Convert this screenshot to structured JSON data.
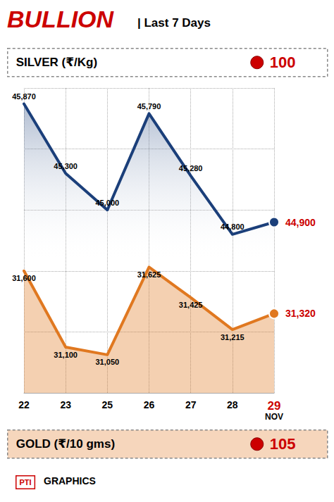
{
  "chart_data": {
    "type": "line",
    "title": "BULLION",
    "subtitle": "| Last 7 Days",
    "categories": [
      "22",
      "23",
      "25",
      "26",
      "27",
      "28",
      "29"
    ],
    "series": [
      {
        "name": "SILVER (₹/Kg)",
        "color": "#1b3f7a",
        "values": [
          45870,
          45300,
          45000,
          45790,
          45280,
          44800,
          44900
        ],
        "value_labels": [
          "45,870",
          "45,300",
          "45,000",
          "45,790",
          "45,280",
          "44,800",
          "44,900"
        ]
      },
      {
        "name": "GOLD (₹/10 gms)",
        "color": "#e07820",
        "axis": "y2",
        "values": [
          31600,
          31100,
          31050,
          31625,
          31425,
          31215,
          31320
        ],
        "value_labels": [
          "31,600",
          "31,100",
          "31,050",
          "31,625",
          "31,425",
          "31,215",
          "31,320"
        ]
      }
    ],
    "ylim": [
      43500,
      46000
    ],
    "yticks": [
      43500,
      44000,
      44500,
      45000,
      45500,
      46000
    ],
    "y2lim": [
      30800,
      32800
    ],
    "y2ticks": [
      30800,
      31200,
      31600,
      32000,
      32400,
      32800
    ],
    "grid": true,
    "data_labels": true,
    "tick_labels": "x",
    "annotations": [
      {
        "text": "100",
        "series": "SILVER (₹/Kg)"
      },
      {
        "text": "105",
        "series": "GOLD (₹/10 gms)"
      },
      {
        "text": "NOV",
        "category": "29"
      },
      {
        "text": "PTI"
      },
      {
        "text": "GRAPHICS"
      }
    ]
  }
}
